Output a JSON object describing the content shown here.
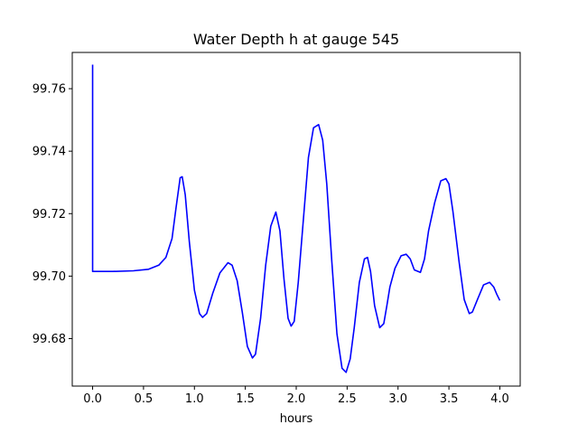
{
  "chart_data": {
    "type": "line",
    "title": "Water Depth h at gauge 545",
    "xlabel": "hours",
    "ylabel": "",
    "xlim": [
      -0.2,
      4.2
    ],
    "ylim": [
      99.6648,
      99.7716
    ],
    "grid": false,
    "x_ticks": [
      0.0,
      0.5,
      1.0,
      1.5,
      2.0,
      2.5,
      3.0,
      3.5,
      4.0
    ],
    "x_tick_labels": [
      "0.0",
      "0.5",
      "1.0",
      "1.5",
      "2.0",
      "2.5",
      "3.0",
      "3.5",
      "4.0"
    ],
    "y_ticks": [
      99.68,
      99.7,
      99.72,
      99.74,
      99.76
    ],
    "y_tick_labels": [
      "99.68",
      "99.70",
      "99.72",
      "99.74",
      "99.76"
    ],
    "series": [
      {
        "color": "#0000ff",
        "x": [
          0.0,
          0.0,
          0.2,
          0.4,
          0.55,
          0.65,
          0.72,
          0.78,
          0.82,
          0.86,
          0.88,
          0.91,
          0.95,
          1.0,
          1.05,
          1.08,
          1.12,
          1.18,
          1.25,
          1.33,
          1.37,
          1.42,
          1.47,
          1.52,
          1.57,
          1.6,
          1.65,
          1.7,
          1.75,
          1.8,
          1.84,
          1.88,
          1.92,
          1.95,
          1.98,
          2.02,
          2.07,
          2.12,
          2.17,
          2.22,
          2.26,
          2.3,
          2.35,
          2.4,
          2.45,
          2.49,
          2.53,
          2.57,
          2.62,
          2.67,
          2.7,
          2.73,
          2.77,
          2.82,
          2.86,
          2.89,
          2.92,
          2.97,
          3.03,
          3.08,
          3.12,
          3.16,
          3.22,
          3.26,
          3.3,
          3.36,
          3.42,
          3.47,
          3.5,
          3.54,
          3.6,
          3.65,
          3.7,
          3.73,
          3.78,
          3.84,
          3.9,
          3.94,
          3.97,
          4.0
        ],
        "y": [
          99.7677,
          99.7015,
          99.7015,
          99.7017,
          99.7022,
          99.7035,
          99.706,
          99.712,
          99.722,
          99.7315,
          99.7318,
          99.726,
          99.711,
          99.6955,
          99.688,
          99.6868,
          99.688,
          99.6945,
          99.701,
          99.7043,
          99.7035,
          99.6985,
          99.6885,
          99.6775,
          99.6738,
          99.675,
          99.6865,
          99.7035,
          99.716,
          99.7205,
          99.7145,
          99.699,
          99.6865,
          99.684,
          99.6855,
          99.698,
          99.718,
          99.738,
          99.7475,
          99.7485,
          99.7435,
          99.7295,
          99.7045,
          99.6815,
          99.6705,
          99.6692,
          99.6735,
          99.6835,
          99.698,
          99.7055,
          99.706,
          99.7015,
          99.6905,
          99.6835,
          99.6848,
          99.6905,
          99.6965,
          99.7025,
          99.7065,
          99.707,
          99.7055,
          99.702,
          99.7012,
          99.7055,
          99.7145,
          99.7235,
          99.7305,
          99.7312,
          99.7295,
          99.7205,
          99.7045,
          99.6925,
          99.688,
          99.6885,
          99.6925,
          99.6972,
          99.698,
          99.6965,
          99.6942,
          99.6922
        ]
      }
    ]
  }
}
